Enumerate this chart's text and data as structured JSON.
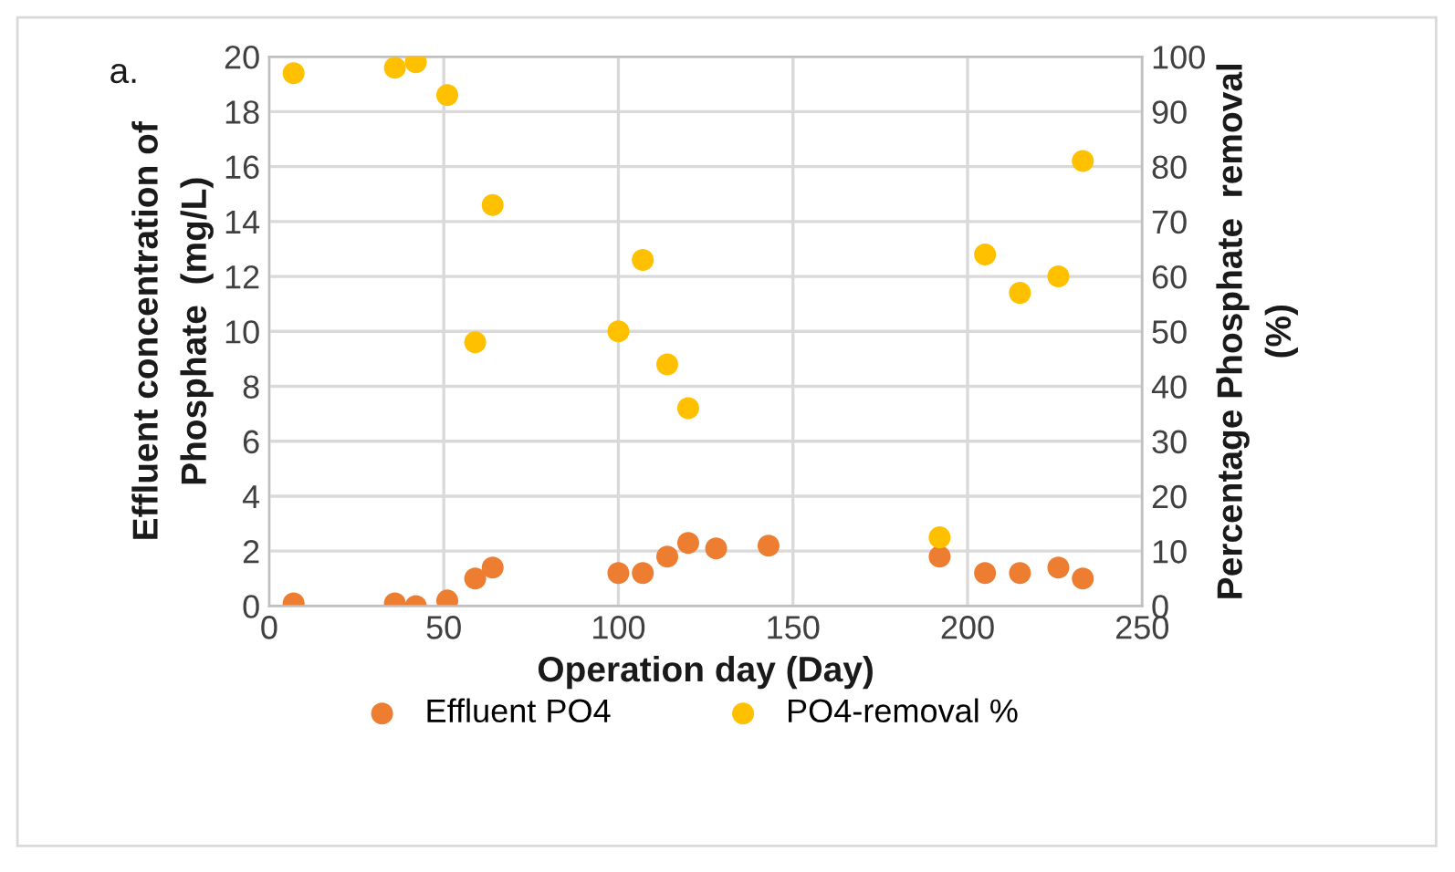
{
  "chart_data": {
    "type": "scatter",
    "xlabel": "Operation day (Day)",
    "ylabel": "Effluent concentration of\nPhosphate  (mg/L)",
    "y2label": "Percentage Phosphate  removal\n(%)",
    "annotations": [
      "a."
    ],
    "series": [
      {
        "name": "Effluent PO4",
        "color": "#ed7d31",
        "x": [
          7,
          36,
          42,
          51,
          59,
          64,
          100,
          107,
          114,
          120,
          128,
          143,
          192,
          205,
          215,
          226,
          233
        ],
        "values": [
          0.1,
          0.1,
          0.0,
          0.2,
          1.0,
          1.4,
          1.2,
          1.2,
          1.8,
          2.3,
          2.1,
          2.2,
          1.8,
          1.2,
          1.2,
          1.4,
          1.0
        ]
      },
      {
        "name": "PO4-removal %",
        "color": "#ffc000",
        "axis": "y2",
        "x": [
          7,
          36,
          42,
          51,
          59,
          64,
          100,
          107,
          114,
          120,
          192,
          205,
          215,
          226,
          233
        ],
        "values": [
          97,
          98,
          99,
          93,
          48,
          73,
          50,
          63,
          44,
          36,
          12.5,
          64,
          57,
          60,
          81
        ]
      }
    ],
    "xlim": [
      0,
      250
    ],
    "xticks": [
      0,
      50,
      100,
      150,
      200,
      250
    ],
    "ylim": [
      0,
      20
    ],
    "yticks": [
      0,
      2,
      4,
      6,
      8,
      10,
      12,
      14,
      16,
      18,
      20
    ],
    "y2lim": [
      0,
      100
    ],
    "y2ticks": [
      0,
      10,
      20,
      30,
      40,
      50,
      60,
      70,
      80,
      90,
      100
    ],
    "grid": true,
    "legend": "bottom",
    "marker": "circle"
  }
}
